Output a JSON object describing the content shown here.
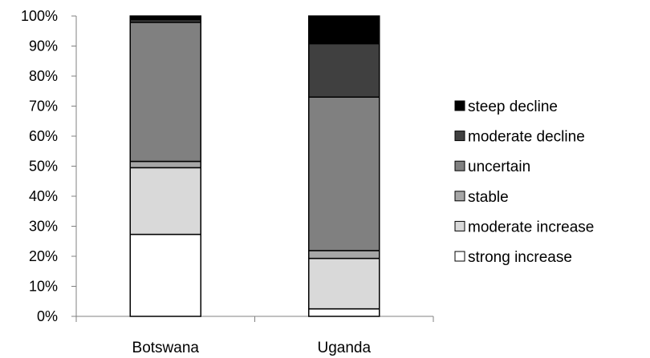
{
  "chart_data": {
    "type": "bar",
    "stacked": true,
    "percent": true,
    "categories": [
      "Botswana",
      "Uganda"
    ],
    "series": [
      {
        "name": "strong increase",
        "color": "#ffffff",
        "values": [
          27.3,
          2.5
        ]
      },
      {
        "name": "moderate increase",
        "color": "#d9d9d9",
        "values": [
          22.2,
          16.8
        ]
      },
      {
        "name": "stable",
        "color": "#a6a6a6",
        "values": [
          2.1,
          2.6
        ]
      },
      {
        "name": "uncertain",
        "color": "#808080",
        "values": [
          46.3,
          51.1
        ]
      },
      {
        "name": "moderate decline",
        "color": "#404040",
        "values": [
          0.9,
          17.8
        ]
      },
      {
        "name": "steep decline",
        "color": "#000000",
        "values": [
          1.2,
          9.2
        ]
      }
    ],
    "yticks": [
      "0%",
      "10%",
      "20%",
      "30%",
      "40%",
      "50%",
      "60%",
      "70%",
      "80%",
      "90%",
      "100%"
    ],
    "ylim": [
      0,
      100
    ],
    "legend_position": "right",
    "legend_order": [
      "steep decline",
      "moderate decline",
      "uncertain",
      "stable",
      "moderate increase",
      "strong increase"
    ],
    "grid": false
  }
}
